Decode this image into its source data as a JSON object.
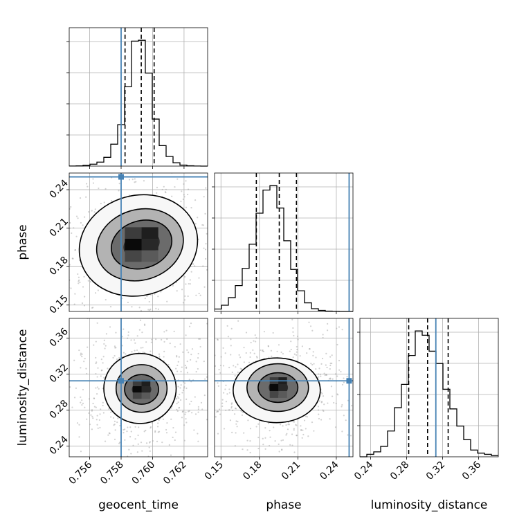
{
  "chart_data": {
    "type": "corner",
    "colors": {
      "truth": "#4682b4",
      "hist": "#000000",
      "quantile": "#000000",
      "grid": "#b0b0b0",
      "scatter": "#9a9a9a"
    },
    "parameters": [
      "geocent_time",
      "phase",
      "luminosity_distance"
    ],
    "truths": {
      "geocent_time": 0.758,
      "phase": 0.25,
      "luminosity_distance": 0.3125
    },
    "ranges": {
      "geocent_time": [
        0.7547,
        0.7635
      ],
      "phase": [
        0.145,
        0.253
      ],
      "luminosity_distance": [
        0.228,
        0.382
      ]
    },
    "ticks": {
      "geocent_time": {
        "values": [
          0.756,
          0.758,
          0.76,
          0.762
        ],
        "labels": [
          "0.756",
          "0.758",
          "0.760",
          "0.762"
        ]
      },
      "phase": {
        "values": [
          0.15,
          0.18,
          0.21,
          0.24
        ],
        "labels": [
          "0.15",
          "0.18",
          "0.21",
          "0.24"
        ]
      },
      "luminosity_distance": {
        "values": [
          0.24,
          0.28,
          0.32,
          0.36
        ],
        "labels": [
          "0.24",
          "0.28",
          "0.32",
          "0.36"
        ]
      }
    },
    "diagonal": {
      "geocent_time": {
        "bin_edges": [
          0.7547,
          0.75514,
          0.75558,
          0.75602,
          0.75646,
          0.7569,
          0.75734,
          0.75778,
          0.75822,
          0.75866,
          0.7591,
          0.75954,
          0.75998,
          0.76042,
          0.76086,
          0.7613,
          0.76174,
          0.76218,
          0.76262,
          0.76306,
          0.7635
        ],
        "counts": [
          0.5,
          1,
          4,
          9,
          19,
          42,
          105,
          198,
          380,
          598,
          602,
          445,
          225,
          98,
          46,
          16,
          5,
          1.5,
          0.5,
          0
        ],
        "quantiles": [
          0.75825,
          0.75928,
          0.7601
        ]
      },
      "phase": {
        "bin_edges": [
          0.145,
          0.1504,
          0.1558,
          0.1612,
          0.1666,
          0.172,
          0.1774,
          0.1828,
          0.1882,
          0.1936,
          0.199,
          0.2044,
          0.2098,
          0.2152,
          0.2206,
          0.226,
          0.2314,
          0.2368,
          0.2422,
          0.2476,
          0.253
        ],
        "counts": [
          7,
          18,
          40,
          75,
          125,
          195,
          285,
          352,
          365,
          300,
          205,
          122,
          60,
          25,
          8,
          3,
          1,
          0.5,
          0,
          0
        ],
        "quantiles": [
          0.1776,
          0.1955,
          0.2089
        ]
      },
      "luminosity_distance": {
        "bin_edges": [
          0.228,
          0.2357,
          0.2434,
          0.2511,
          0.2588,
          0.2665,
          0.2742,
          0.2819,
          0.2896,
          0.2973,
          0.305,
          0.3127,
          0.3204,
          0.3281,
          0.3358,
          0.3435,
          0.3512,
          0.3589,
          0.3666,
          0.3743,
          0.382
        ],
        "counts": [
          0,
          4,
          8,
          17,
          42,
          80,
          118,
          165,
          205,
          198,
          172,
          152,
          110,
          78,
          50,
          28,
          11,
          6,
          4,
          2
        ],
        "quantiles": [
          0.2823,
          0.3033,
          0.3262
        ]
      }
    },
    "contours": {
      "phase|geocent_time": [
        {
          "cx": 0.7593,
          "cy": 0.1972,
          "rx": 0.00118,
          "ry": 0.01,
          "rot": 0.5,
          "shade": 0.18
        },
        {
          "cx": 0.7593,
          "cy": 0.1972,
          "rx": 0.00196,
          "ry": 0.0185,
          "rot": 0.5,
          "shade": 0.42
        },
        {
          "cx": 0.7592,
          "cy": 0.197,
          "rx": 0.0028,
          "ry": 0.0275,
          "rot": 0.5,
          "shade": 0.7
        },
        {
          "cx": 0.7591,
          "cy": 0.1965,
          "rx": 0.0038,
          "ry": 0.039,
          "rot": 0.45,
          "shade": 0.92
        }
      ],
      "luminosity_distance|geocent_time": [
        {
          "cx": 0.7593,
          "cy": 0.303,
          "rx": 0.00062,
          "ry": 0.0078,
          "rot": 0.0,
          "shade": 0.18
        },
        {
          "cx": 0.7593,
          "cy": 0.303,
          "rx": 0.00108,
          "ry": 0.0165,
          "rot": 0.0,
          "shade": 0.42
        },
        {
          "cx": 0.7593,
          "cy": 0.304,
          "rx": 0.00162,
          "ry": 0.0265,
          "rot": 0.0,
          "shade": 0.7
        },
        {
          "cx": 0.7592,
          "cy": 0.304,
          "rx": 0.0023,
          "ry": 0.039,
          "rot": 0.0,
          "shade": 0.92
        }
      ],
      "luminosity_distance|phase": [
        {
          "cx": 0.1948,
          "cy": 0.305,
          "rx": 0.0075,
          "ry": 0.0085,
          "rot": 0.0,
          "shade": 0.18
        },
        {
          "cx": 0.1945,
          "cy": 0.305,
          "rx": 0.0155,
          "ry": 0.0165,
          "rot": 0.0,
          "shade": 0.42
        },
        {
          "cx": 0.1943,
          "cy": 0.305,
          "rx": 0.024,
          "ry": 0.0265,
          "rot": 0.0,
          "shade": 0.7
        },
        {
          "cx": 0.1935,
          "cy": 0.302,
          "rx": 0.034,
          "ry": 0.036,
          "rot": 0.0,
          "shade": 0.92
        }
      ]
    }
  }
}
